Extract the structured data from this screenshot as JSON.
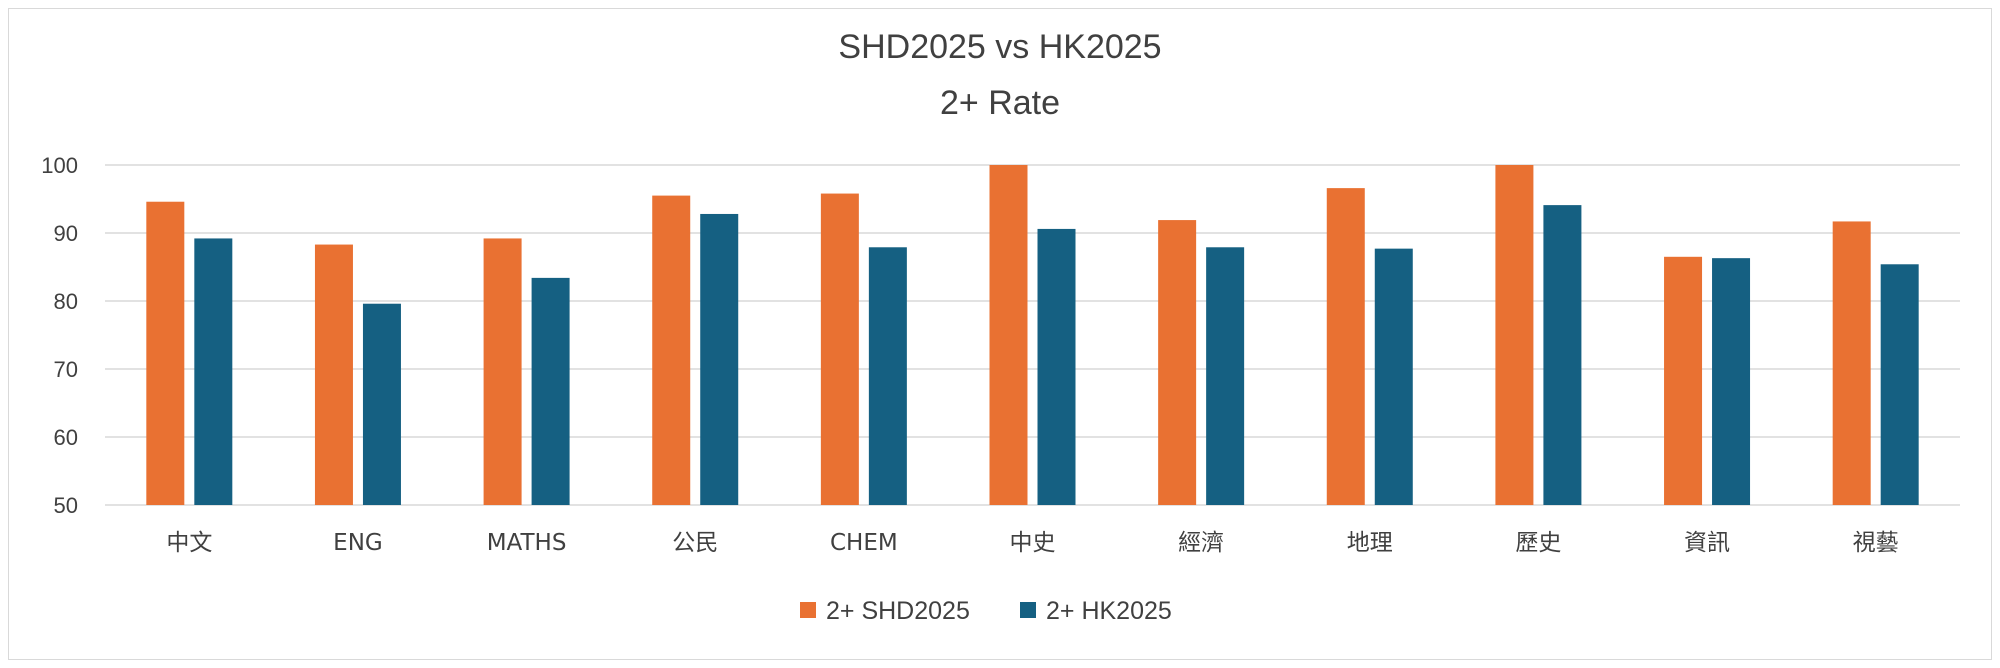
{
  "chart_data": {
    "type": "bar",
    "title": "SHD2025 vs HK2025",
    "subtitle": "2+ Rate",
    "categories": [
      "中文",
      "ENG",
      "MATHS",
      "公民",
      "CHEM",
      "中史",
      "經濟",
      "地理",
      "歷史",
      "資訊",
      "視藝"
    ],
    "series": [
      {
        "name": "2+ SHD2025",
        "color": "#e97132",
        "values": [
          94.6,
          88.3,
          89.2,
          95.5,
          95.8,
          100,
          91.9,
          96.6,
          100,
          86.5,
          91.7
        ]
      },
      {
        "name": "2+ HK2025",
        "color": "#156082",
        "values": [
          89.2,
          79.6,
          83.4,
          92.8,
          87.9,
          90.6,
          87.9,
          87.7,
          94.1,
          86.3,
          85.4
        ]
      }
    ],
    "ylim": [
      50,
      100
    ],
    "yticks": [
      50,
      60,
      70,
      80,
      90,
      100
    ],
    "grid": true,
    "legend_position": "bottom",
    "xlabel": "",
    "ylabel": ""
  }
}
